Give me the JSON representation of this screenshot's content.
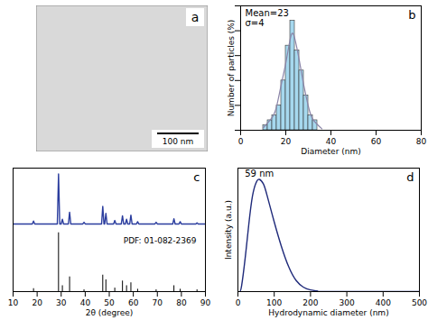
{
  "chart_data": [
    {
      "type": "image",
      "label": "a",
      "scale_bar": "100 nm"
    },
    {
      "type": "histogram",
      "label": "b",
      "xlabel": "Diameter (nm)",
      "ylabel": "Number of particles (%)",
      "bins": [
        10,
        12,
        14,
        16,
        18,
        20,
        22,
        24,
        26,
        28,
        30,
        32,
        34
      ],
      "counts": [
        1,
        2,
        3,
        5,
        10,
        17,
        22,
        16,
        12,
        7,
        3,
        2
      ],
      "color": "#a6d8ee",
      "xlim": [
        0,
        80
      ],
      "xticks": [
        0,
        20,
        40,
        60,
        80
      ],
      "ylim": [
        0,
        25
      ],
      "yticks": [
        0,
        5,
        10,
        15,
        20,
        25
      ],
      "tick_labels": "x",
      "annotations": [
        "Mean=23",
        "σ=4"
      ],
      "fit": {
        "x": [
          10,
          14,
          16,
          18,
          20,
          22,
          23,
          24,
          26,
          28,
          30,
          32,
          36
        ],
        "values": [
          0.5,
          2.6,
          4.9,
          9.2,
          13.5,
          18.4,
          19.5,
          18.4,
          14,
          9,
          4.8,
          2.2,
          0.3
        ],
        "color": "#8a84a8"
      }
    },
    {
      "type": "line",
      "label": "c",
      "xlabel": "2θ (degree)",
      "x": [
        10,
        18.0,
        18.5,
        19.0,
        28.4,
        28.9,
        29.4,
        30.0,
        30.5,
        31.0,
        33.0,
        33.5,
        34.0,
        39.0,
        39.5,
        40.0,
        46.8,
        47.3,
        47.8,
        48.1,
        48.6,
        49.1,
        51.8,
        52.3,
        52.8,
        55.0,
        55.5,
        56.0,
        56.7,
        57.2,
        57.7,
        58.5,
        59.0,
        59.5,
        61.3,
        61.8,
        62.3,
        69.0,
        69.5,
        70.0,
        76.4,
        76.9,
        77.4,
        79.0,
        79.5,
        80.0,
        86.0,
        86.5,
        87.0,
        90
      ],
      "values": [
        115,
        115,
        120,
        115,
        115,
        200,
        115,
        115,
        123,
        115,
        115,
        135,
        115,
        115,
        118,
        115,
        115,
        145,
        115,
        115,
        133,
        115,
        115,
        121,
        115,
        115,
        129,
        115,
        115,
        123,
        115,
        115,
        130,
        115,
        115,
        119,
        115,
        115,
        118,
        115,
        115,
        124,
        115,
        115,
        119,
        115,
        115,
        117,
        115,
        115
      ],
      "color": "#2b3d9e",
      "sticks": {
        "x": [
          18.5,
          28.9,
          30.5,
          33.5,
          39.5,
          47.3,
          48.6,
          52.3,
          55.5,
          57.2,
          59.0,
          61.8,
          69.5,
          76.9,
          79.5,
          86.5
        ],
        "values": [
          5,
          100,
          10,
          25,
          3,
          28,
          20,
          6,
          18,
          10,
          15,
          4,
          3,
          10,
          4,
          3
        ],
        "color": "#000000",
        "label": "PDF: 01-082-2369"
      },
      "xlim": [
        10,
        90
      ],
      "xticks": [
        10,
        20,
        30,
        40,
        50,
        60,
        70,
        80,
        90
      ],
      "ylim": [
        0,
        210
      ],
      "tick_labels": "x"
    },
    {
      "type": "line",
      "label": "d",
      "xlabel": "Hydrodynamic diameter (nm)",
      "ylabel": "Intensity (a.u.)",
      "x": [
        5,
        10,
        20,
        30,
        40,
        50,
        59,
        70,
        80,
        100,
        120,
        140,
        160,
        180,
        200,
        220,
        250,
        500
      ],
      "values": [
        0,
        5,
        30,
        60,
        85,
        97,
        100,
        96,
        86,
        62,
        40,
        22,
        10,
        4,
        1.5,
        0.3,
        0,
        0
      ],
      "color": "#1f2a7a",
      "annotation": "59 nm",
      "xlim": [
        0,
        500
      ],
      "xticks": [
        0,
        100,
        200,
        300,
        400,
        500
      ],
      "ylim": [
        0,
        110
      ],
      "tick_labels": "x"
    }
  ]
}
